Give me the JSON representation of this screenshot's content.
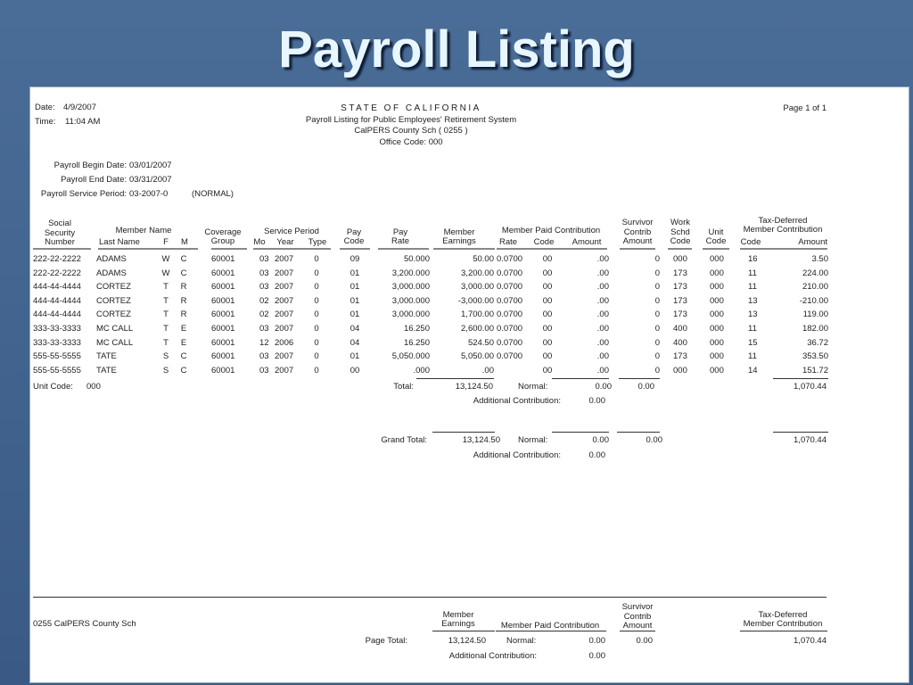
{
  "slide_title": "Payroll Listing",
  "report": {
    "date_label": "Date:",
    "date": "4/9/2007",
    "time_label": "Time:",
    "time": "11:04 AM",
    "state": "STATE OF CALIFORNIA",
    "subtitle": "Payroll Listing for Public Employees' Retirement System",
    "agency": "CalPERS County Sch ( 0255  )",
    "office": "Office Code: 000",
    "page": "Page 1 of 1",
    "begin_label": "Payroll Begin Date:",
    "begin": "03/01/2007",
    "end_label": "Payroll End Date:",
    "end": "03/31/2007",
    "period_label": "Payroll Service Period:",
    "period": "03-2007-0",
    "period_type": "(NORMAL)"
  },
  "headers": {
    "ssn": [
      "Social",
      "Security",
      "Number"
    ],
    "member_name": "Member Name",
    "last_name": "Last Name",
    "f": "F",
    "m": "M",
    "coverage": [
      "Coverage",
      "Group"
    ],
    "service_period": "Service Period",
    "mo": "Mo",
    "year": "Year",
    "type": "Type",
    "pay_code": [
      "Pay",
      "Code"
    ],
    "pay_rate": [
      "Pay",
      "Rate"
    ],
    "earnings": [
      "Member",
      "Earnings"
    ],
    "mpc": "Member Paid Contribution",
    "rate": "Rate",
    "code": "Code",
    "amount": "Amount",
    "survivor": [
      "Survivor",
      "Contrib",
      "Amount"
    ],
    "work": [
      "Work",
      "Schd",
      "Code"
    ],
    "unit": [
      "Unit",
      "Code"
    ],
    "td": [
      "Tax-Deferred",
      "Member Contribution"
    ],
    "td_code": "Code",
    "td_amount": "Amount"
  },
  "rows": [
    [
      "222-22-2222",
      "ADAMS",
      "W",
      "C",
      "60001",
      "03",
      "2007",
      "0",
      "09",
      "50.000",
      "50.00",
      "0.0700",
      "00",
      ".00",
      "0",
      "000",
      "000",
      "16",
      "3.50"
    ],
    [
      "222-22-2222",
      "ADAMS",
      "W",
      "C",
      "60001",
      "03",
      "2007",
      "0",
      "01",
      "3,200.000",
      "3,200.00",
      "0.0700",
      "00",
      ".00",
      "0",
      "173",
      "000",
      "11",
      "224.00"
    ],
    [
      "444-44-4444",
      "CORTEZ",
      "T",
      "R",
      "60001",
      "03",
      "2007",
      "0",
      "01",
      "3,000.000",
      "3,000.00",
      "0.0700",
      "00",
      ".00",
      "0",
      "173",
      "000",
      "11",
      "210.00"
    ],
    [
      "444-44-4444",
      "CORTEZ",
      "T",
      "R",
      "60001",
      "02",
      "2007",
      "0",
      "01",
      "3,000.000",
      "-3,000.00",
      "0.0700",
      "00",
      ".00",
      "0",
      "173",
      "000",
      "13",
      "-210.00"
    ],
    [
      "444-44-4444",
      "CORTEZ",
      "T",
      "R",
      "60001",
      "02",
      "2007",
      "0",
      "01",
      "3,000.000",
      "1,700.00",
      "0.0700",
      "00",
      ".00",
      "0",
      "173",
      "000",
      "13",
      "119.00"
    ],
    [
      "333-33-3333",
      "MC CALL",
      "T",
      "E",
      "60001",
      "03",
      "2007",
      "0",
      "04",
      "16.250",
      "2,600.00",
      "0.0700",
      "00",
      ".00",
      "0",
      "400",
      "000",
      "11",
      "182.00"
    ],
    [
      "333-33-3333",
      "MC CALL",
      "T",
      "E",
      "60001",
      "12",
      "2006",
      "0",
      "04",
      "16.250",
      "524.50",
      "0.0700",
      "00",
      ".00",
      "0",
      "400",
      "000",
      "15",
      "36.72"
    ],
    [
      "555-55-5555",
      "TATE",
      "S",
      "C",
      "60001",
      "03",
      "2007",
      "0",
      "01",
      "5,050.000",
      "5,050.00",
      "0.0700",
      "00",
      ".00",
      "0",
      "173",
      "000",
      "11",
      "353.50"
    ],
    [
      "555-55-5555",
      "TATE",
      "S",
      "C",
      "60001",
      "03",
      "2007",
      "0",
      "00",
      ".000",
      ".00",
      "",
      "00",
      ".00",
      "0",
      "000",
      "000",
      "14",
      "151.72"
    ]
  ],
  "unit_total": {
    "unit_label": "Unit Code:",
    "unit": "000",
    "total_label": "Total:",
    "earnings": "13,124.50",
    "normal_label": "Normal:",
    "normal": "0.00",
    "survivor": "0.00",
    "td": "1,070.44",
    "additional_label": "Additional Contribution:",
    "additional": "0.00"
  },
  "grand_total": {
    "label": "Grand Total:",
    "earnings": "13,124.50",
    "normal_label": "Normal:",
    "normal": "0.00",
    "survivor": "0.00",
    "td": "1,070.44",
    "additional_label": "Additional Contribution:",
    "additional": "0.00"
  },
  "footer": {
    "agency": "0255    CalPERS County Sch",
    "earnings_header": [
      "Member",
      "Earnings"
    ],
    "mpc_header": "Member Paid Contribution",
    "survivor_header": [
      "Survivor",
      "Contrib",
      "Amount"
    ],
    "td_header": [
      "Tax-Deferred",
      "Member Contribution"
    ],
    "page_total_label": "Page Total:",
    "earnings": "13,124.50",
    "normal_label": "Normal:",
    "normal": "0.00",
    "survivor": "0.00",
    "td": "1,070.44",
    "additional_label": "Additional Contribution:",
    "additional": "0.00"
  }
}
